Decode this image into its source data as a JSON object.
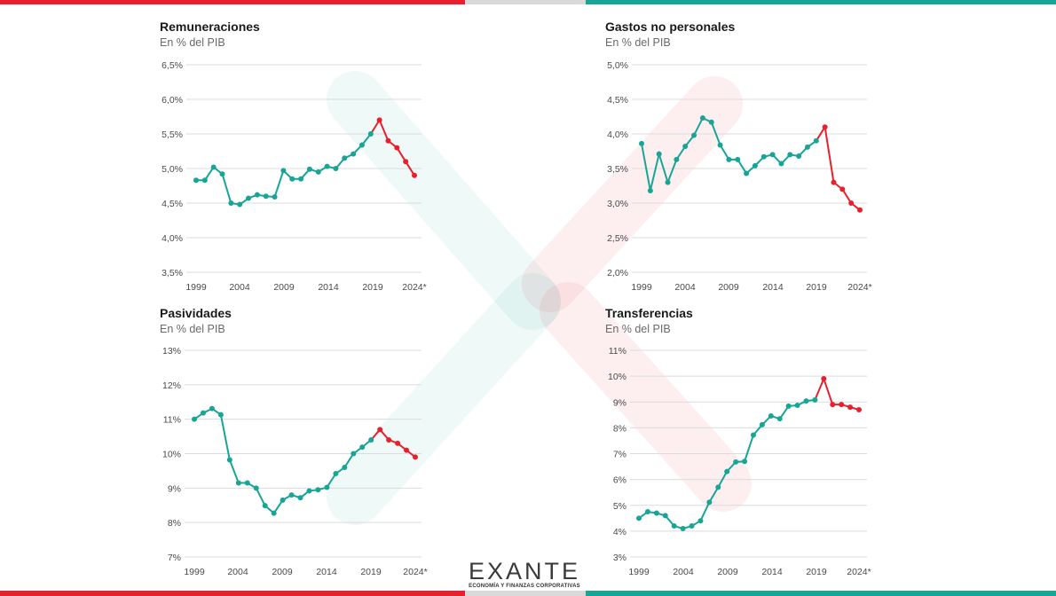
{
  "colors": {
    "historic": "#17a596",
    "projection": "#e8202d",
    "grid": "#dcdcdc",
    "bar_red": "#e8202d",
    "bar_grey": "#d9d9d9",
    "bar_teal": "#17a596"
  },
  "logo": {
    "word": "EXANTE",
    "tagline": "ECONOMÍA Y FINANZAS CORPORATIVAS"
  },
  "chart_data": [
    {
      "type": "line",
      "title": "Remuneraciones",
      "subtitle": "En % del PIB",
      "x_ticks": [
        "1999",
        "2004",
        "2009",
        "2014",
        "2019",
        "2024*"
      ],
      "y_ticks": [
        "3,5%",
        "4,0%",
        "4,5%",
        "5,0%",
        "5,5%",
        "6,0%",
        "6,5%"
      ],
      "ylim": [
        3.5,
        6.5
      ],
      "x": [
        1999,
        2000,
        2001,
        2002,
        2003,
        2004,
        2005,
        2006,
        2007,
        2008,
        2009,
        2010,
        2011,
        2012,
        2013,
        2014,
        2015,
        2016,
        2017,
        2018,
        2019,
        2020,
        2021,
        2022,
        2023,
        2024
      ],
      "values": [
        4.83,
        4.83,
        5.02,
        4.92,
        4.5,
        4.48,
        4.57,
        4.62,
        4.6,
        4.59,
        4.97,
        4.85,
        4.85,
        4.99,
        4.95,
        5.03,
        5.0,
        5.15,
        5.21,
        5.34,
        5.5,
        5.7,
        5.4,
        5.3,
        5.1,
        4.9
      ],
      "projection_start_index": 21
    },
    {
      "type": "line",
      "title": "Gastos no personales",
      "subtitle": "En % del PIB",
      "x_ticks": [
        "1999",
        "2004",
        "2009",
        "2014",
        "2019",
        "2024*"
      ],
      "y_ticks": [
        "2,0%",
        "2,5%",
        "3,0%",
        "3,5%",
        "4,0%",
        "4,5%",
        "5,0%"
      ],
      "ylim": [
        2.0,
        5.0
      ],
      "x": [
        1999,
        2000,
        2001,
        2002,
        2003,
        2004,
        2005,
        2006,
        2007,
        2008,
        2009,
        2010,
        2011,
        2012,
        2013,
        2014,
        2015,
        2016,
        2017,
        2018,
        2019,
        2020,
        2021,
        2022,
        2023,
        2024
      ],
      "values": [
        3.86,
        3.18,
        3.71,
        3.3,
        3.63,
        3.82,
        3.98,
        4.23,
        4.17,
        3.84,
        3.63,
        3.63,
        3.43,
        3.54,
        3.67,
        3.7,
        3.57,
        3.7,
        3.68,
        3.81,
        3.9,
        4.1,
        3.3,
        3.2,
        3.0,
        2.9
      ],
      "projection_start_index": 21
    },
    {
      "type": "line",
      "title": "Pasividades",
      "subtitle": "En % del PIB",
      "x_ticks": [
        "1999",
        "2004",
        "2009",
        "2014",
        "2019",
        "2024*"
      ],
      "y_ticks": [
        "7%",
        "8%",
        "9%",
        "10%",
        "11%",
        "12%",
        "13%"
      ],
      "ylim": [
        7,
        13
      ],
      "x": [
        1999,
        2000,
        2001,
        2002,
        2003,
        2004,
        2005,
        2006,
        2007,
        2008,
        2009,
        2010,
        2011,
        2012,
        2013,
        2014,
        2015,
        2016,
        2017,
        2018,
        2019,
        2020,
        2021,
        2022,
        2023,
        2024
      ],
      "values": [
        11.0,
        11.18,
        11.31,
        11.13,
        9.82,
        9.15,
        9.15,
        9.0,
        8.49,
        8.27,
        8.65,
        8.8,
        8.72,
        8.92,
        8.95,
        9.02,
        9.42,
        9.6,
        10.0,
        10.19,
        10.4,
        10.7,
        10.4,
        10.3,
        10.1,
        9.9
      ],
      "projection_start_index": 21
    },
    {
      "type": "line",
      "title": "Transferencias",
      "subtitle": "En % del PIB",
      "x_ticks": [
        "1999",
        "2004",
        "2009",
        "2014",
        "2019",
        "2024*"
      ],
      "y_ticks": [
        "3%",
        "4%",
        "5%",
        "6%",
        "7%",
        "8%",
        "9%",
        "10%",
        "11%"
      ],
      "ylim": [
        3,
        11
      ],
      "x": [
        1999,
        2000,
        2001,
        2002,
        2003,
        2004,
        2005,
        2006,
        2007,
        2008,
        2009,
        2010,
        2011,
        2012,
        2013,
        2014,
        2015,
        2016,
        2017,
        2018,
        2019,
        2020,
        2021,
        2022,
        2023,
        2024
      ],
      "values": [
        4.5,
        4.75,
        4.7,
        4.6,
        4.2,
        4.1,
        4.2,
        4.4,
        5.12,
        5.7,
        6.31,
        6.68,
        6.7,
        7.72,
        8.12,
        8.46,
        8.35,
        8.84,
        8.87,
        9.04,
        9.08,
        9.9,
        8.9,
        8.9,
        8.8,
        8.7
      ],
      "projection_start_index": 21
    }
  ]
}
